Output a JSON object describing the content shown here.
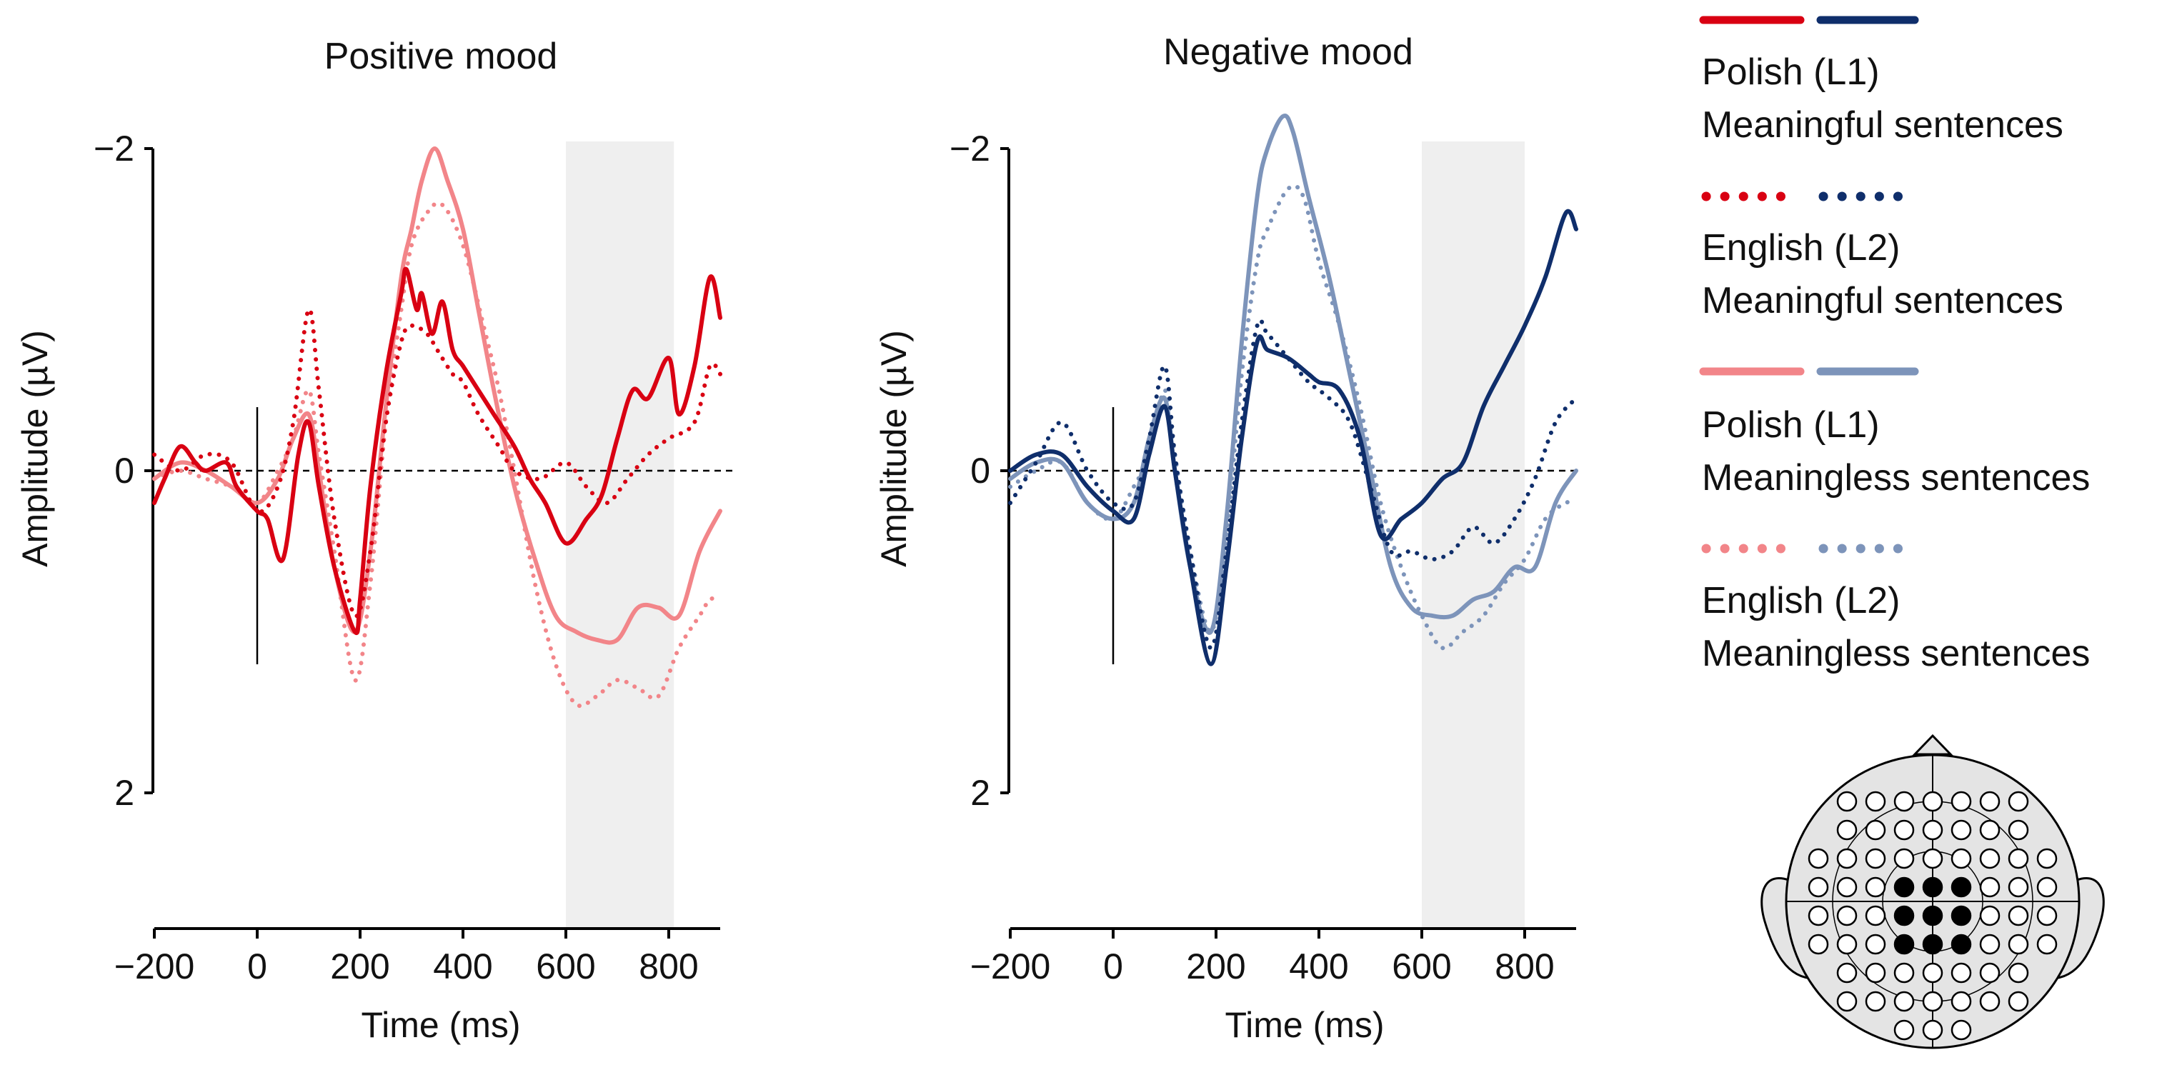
{
  "colors": {
    "pos_l1_meaningful": "#d90012",
    "pos_l2_meaningful": "#d90012",
    "pos_l1_meaningless": "#f28589",
    "pos_l2_meaningless": "#f28589",
    "neg_l1_meaningful": "#0f2e6b",
    "neg_l2_meaningful": "#0f2e6b",
    "neg_l1_meaningless": "#7d94ba",
    "neg_l2_meaningless": "#7d94ba",
    "highlight_window": "#efefef",
    "head_fill": "#e4e4e4",
    "electrode_active": "#000000",
    "electrode_inactive": "#ffffff"
  },
  "legend": {
    "entries": [
      {
        "line1": "Polish (L1)",
        "line2": "Meaningful sentences",
        "style": "solid",
        "colors": [
          "#d90012",
          "#0f2e6b"
        ]
      },
      {
        "line1": "English (L2)",
        "line2": "Meaningful sentences",
        "style": "dotted",
        "colors": [
          "#d90012",
          "#0f2e6b"
        ]
      },
      {
        "line1": "Polish (L1)",
        "line2": "Meaningless sentences",
        "style": "solid",
        "colors": [
          "#f28589",
          "#7d94ba"
        ]
      },
      {
        "line1": "English (L2)",
        "line2": "Meaningless sentences",
        "style": "dotted",
        "colors": [
          "#f28589",
          "#7d94ba"
        ]
      }
    ]
  },
  "chart_data": [
    {
      "type": "line",
      "title": "Positive mood",
      "xlabel": "Time (ms)",
      "ylabel": "Amplitude (µV)",
      "xlim": [
        -200,
        900
      ],
      "ylim": [
        2,
        -2
      ],
      "y_inverted": true,
      "x_ticks": [
        "-200",
        "0",
        "200",
        "400",
        "600",
        "800"
      ],
      "x_tick_values": [
        -200,
        0,
        200,
        400,
        600,
        800
      ],
      "y_ticks": [
        "-2",
        "0",
        "2"
      ],
      "y_tick_values": [
        -2,
        0,
        2
      ],
      "highlight_window": [
        600,
        810
      ],
      "zero_line": "dashed",
      "series": [
        {
          "name": "Polish (L1) Meaningful sentences",
          "style": "solid",
          "width": 6,
          "color": "#d90012",
          "x": [
            -200,
            -180,
            -150,
            -120,
            -100,
            -60,
            -40,
            0,
            20,
            50,
            80,
            100,
            120,
            150,
            190,
            200,
            220,
            250,
            280,
            290,
            310,
            320,
            340,
            360,
            380,
            400,
            430,
            460,
            500,
            530,
            560,
            600,
            640,
            670,
            700,
            730,
            760,
            800,
            820,
            850,
            880,
            900
          ],
          "y": [
            0.2,
            0.05,
            -0.15,
            -0.05,
            0.0,
            -0.05,
            0.1,
            0.25,
            0.3,
            0.55,
            -0.1,
            -0.3,
            0.1,
            0.6,
            1.0,
            0.8,
            0.1,
            -0.6,
            -1.1,
            -1.25,
            -1.0,
            -1.1,
            -0.85,
            -1.05,
            -0.75,
            -0.65,
            -0.5,
            -0.35,
            -0.15,
            0.05,
            0.2,
            0.45,
            0.3,
            0.15,
            -0.2,
            -0.5,
            -0.45,
            -0.7,
            -0.35,
            -0.65,
            -1.2,
            -0.95
          ]
        },
        {
          "name": "English (L2) Meaningful sentences",
          "style": "dotted",
          "width": 6,
          "color": "#d90012",
          "x": [
            -200,
            -150,
            -100,
            -50,
            0,
            40,
            70,
            100,
            120,
            150,
            190,
            220,
            250,
            280,
            300,
            330,
            350,
            380,
            400,
            430,
            470,
            500,
            550,
            600,
            640,
            680,
            720,
            760,
            800,
            850,
            880,
            900
          ],
          "y": [
            -0.1,
            0.0,
            -0.1,
            -0.05,
            0.25,
            0.1,
            -0.3,
            -1.0,
            -0.5,
            0.3,
            0.9,
            0.5,
            -0.3,
            -0.8,
            -0.9,
            -0.85,
            -0.75,
            -0.6,
            -0.55,
            -0.35,
            -0.15,
            0.0,
            0.05,
            -0.05,
            0.1,
            0.2,
            0.05,
            -0.1,
            -0.2,
            -0.3,
            -0.65,
            -0.6
          ]
        },
        {
          "name": "Polish (L1) Meaningless sentences",
          "style": "solid",
          "width": 6,
          "color": "#f28589",
          "x": [
            -200,
            -150,
            -100,
            -50,
            0,
            40,
            70,
            100,
            120,
            150,
            190,
            220,
            250,
            280,
            300,
            320,
            345,
            370,
            400,
            430,
            460,
            500,
            540,
            580,
            620,
            660,
            700,
            740,
            780,
            820,
            860,
            900
          ],
          "y": [
            0.05,
            -0.05,
            0.0,
            0.1,
            0.2,
            0.05,
            -0.2,
            -0.35,
            0.0,
            0.6,
            1.0,
            0.5,
            -0.4,
            -1.2,
            -1.5,
            -1.8,
            -2.0,
            -1.8,
            -1.5,
            -1.0,
            -0.5,
            0.1,
            0.55,
            0.9,
            1.0,
            1.05,
            1.05,
            0.85,
            0.85,
            0.9,
            0.5,
            0.25
          ]
        },
        {
          "name": "English (L2) Meaningless sentences",
          "style": "dotted",
          "width": 6,
          "color": "#f28589",
          "x": [
            -200,
            -150,
            -100,
            -50,
            0,
            40,
            70,
            100,
            120,
            150,
            190,
            220,
            250,
            280,
            300,
            330,
            360,
            400,
            440,
            470,
            500,
            540,
            580,
            620,
            660,
            700,
            740,
            780,
            820,
            860,
            880,
            900
          ],
          "y": [
            0.05,
            0.0,
            0.05,
            0.1,
            0.2,
            0.0,
            -0.2,
            -0.5,
            -0.1,
            0.5,
            1.3,
            0.7,
            -0.3,
            -1.0,
            -1.4,
            -1.6,
            -1.65,
            -1.4,
            -0.9,
            -0.5,
            0.0,
            0.7,
            1.2,
            1.45,
            1.4,
            1.3,
            1.35,
            1.4,
            1.1,
            0.9,
            0.8,
            0.8
          ]
        }
      ]
    },
    {
      "type": "line",
      "title": "Negative mood",
      "xlabel": "Time (ms)",
      "ylabel": "Amplitude (µV)",
      "xlim": [
        -200,
        900
      ],
      "ylim": [
        2,
        -2
      ],
      "y_inverted": true,
      "x_ticks": [
        "-200",
        "0",
        "200",
        "400",
        "600",
        "800"
      ],
      "x_tick_values": [
        -200,
        0,
        200,
        400,
        600,
        800
      ],
      "y_ticks": [
        "-2",
        "0",
        "2"
      ],
      "y_tick_values": [
        -2,
        0,
        2
      ],
      "highlight_window": [
        600,
        800
      ],
      "zero_line": "dashed",
      "series": [
        {
          "name": "Polish (L1) Meaningful sentences",
          "style": "solid",
          "width": 6,
          "color": "#0f2e6b",
          "x": [
            -200,
            -150,
            -100,
            -50,
            0,
            40,
            70,
            100,
            120,
            150,
            190,
            220,
            250,
            280,
            300,
            340,
            380,
            400,
            440,
            480,
            520,
            560,
            600,
            640,
            680,
            720,
            760,
            800,
            840,
            880,
            900
          ],
          "y": [
            0.0,
            -0.1,
            -0.1,
            0.1,
            0.25,
            0.3,
            -0.1,
            -0.4,
            0.0,
            0.6,
            1.2,
            0.6,
            -0.2,
            -0.8,
            -0.75,
            -0.7,
            -0.6,
            -0.55,
            -0.5,
            -0.2,
            0.4,
            0.3,
            0.2,
            0.05,
            -0.05,
            -0.4,
            -0.65,
            -0.9,
            -1.2,
            -1.6,
            -1.5
          ]
        },
        {
          "name": "English (L2) Meaningful sentences",
          "style": "dotted",
          "width": 6,
          "color": "#0f2e6b",
          "x": [
            -200,
            -150,
            -100,
            -50,
            0,
            40,
            70,
            100,
            120,
            150,
            190,
            220,
            250,
            280,
            300,
            340,
            380,
            420,
            460,
            500,
            540,
            580,
            620,
            660,
            700,
            740,
            780,
            820,
            860,
            900
          ],
          "y": [
            0.2,
            -0.05,
            -0.3,
            0.0,
            0.2,
            0.2,
            -0.2,
            -0.65,
            -0.1,
            0.5,
            1.1,
            0.5,
            -0.3,
            -0.9,
            -0.85,
            -0.7,
            -0.55,
            -0.45,
            -0.3,
            0.1,
            0.5,
            0.5,
            0.55,
            0.5,
            0.35,
            0.45,
            0.3,
            0.05,
            -0.3,
            -0.45
          ]
        },
        {
          "name": "Polish (L1) Meaningless sentences",
          "style": "solid",
          "width": 6,
          "color": "#7d94ba",
          "x": [
            -200,
            -150,
            -100,
            -50,
            0,
            40,
            70,
            100,
            120,
            150,
            190,
            220,
            250,
            280,
            300,
            330,
            350,
            380,
            420,
            460,
            500,
            540,
            580,
            620,
            660,
            700,
            740,
            780,
            820,
            860,
            900
          ],
          "y": [
            0.05,
            -0.05,
            -0.05,
            0.2,
            0.3,
            0.2,
            -0.2,
            -0.45,
            0.0,
            0.6,
            1.0,
            0.3,
            -0.8,
            -1.7,
            -2.0,
            -2.2,
            -2.1,
            -1.7,
            -1.2,
            -0.6,
            0.0,
            0.6,
            0.85,
            0.9,
            0.9,
            0.8,
            0.75,
            0.6,
            0.6,
            0.2,
            0.0
          ]
        },
        {
          "name": "English (L2) Meaningless sentences",
          "style": "dotted",
          "width": 6,
          "color": "#7d94ba",
          "x": [
            -200,
            -150,
            -100,
            -50,
            0,
            40,
            70,
            100,
            120,
            150,
            190,
            220,
            250,
            280,
            300,
            340,
            370,
            400,
            440,
            480,
            520,
            560,
            600,
            640,
            680,
            720,
            760,
            800,
            840,
            880,
            900
          ],
          "y": [
            0.1,
            0.0,
            -0.05,
            0.2,
            0.3,
            0.1,
            -0.1,
            -0.5,
            -0.1,
            0.5,
            1.0,
            0.4,
            -0.6,
            -1.3,
            -1.5,
            -1.75,
            -1.7,
            -1.3,
            -0.9,
            -0.4,
            0.2,
            0.6,
            0.9,
            1.1,
            1.0,
            0.9,
            0.7,
            0.55,
            0.3,
            0.2,
            0.2
          ]
        }
      ]
    }
  ]
}
